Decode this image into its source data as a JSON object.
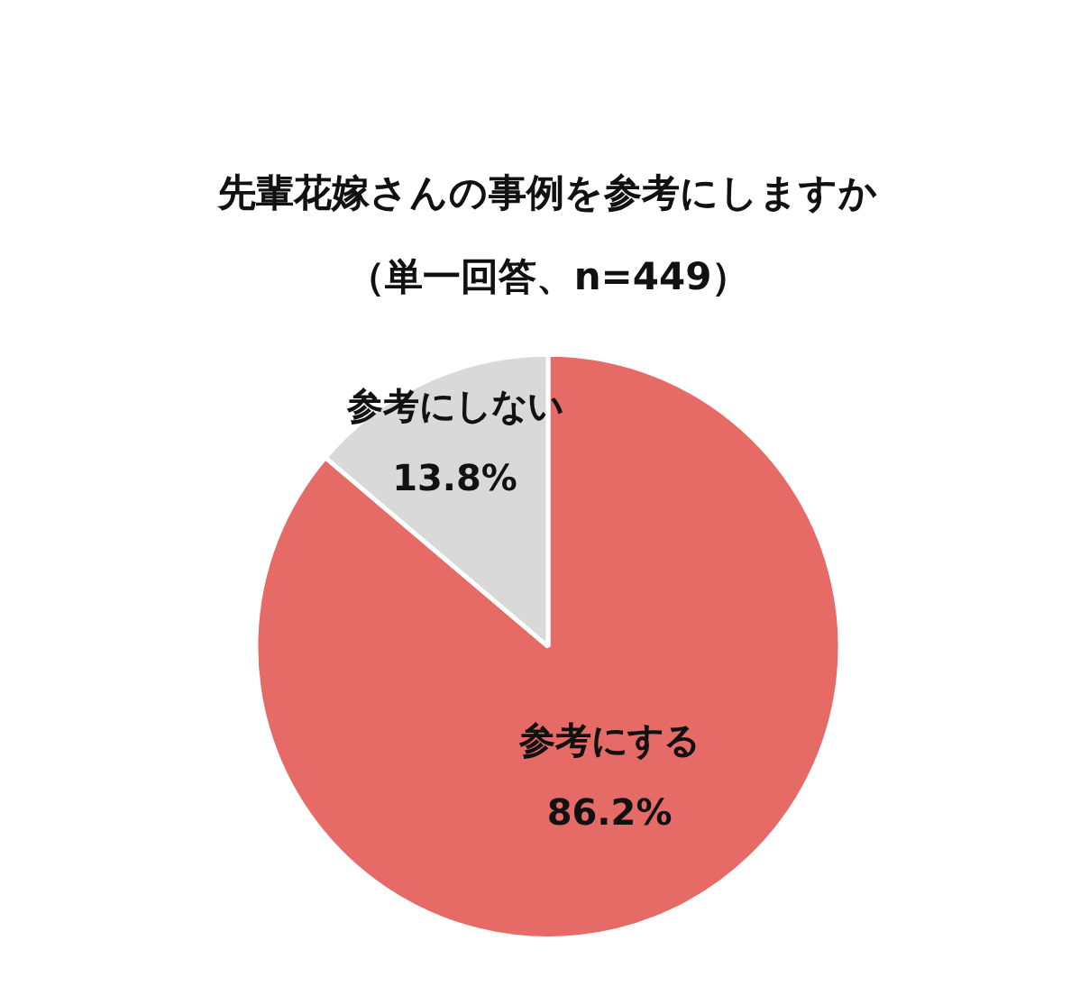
{
  "chart_data": {
    "type": "pie",
    "title": "先輩花嫁さんの事例を参考にしますか",
    "subtitle": "（単一回答、n=449）",
    "categories": [
      "参考にする",
      "参考にしない"
    ],
    "values": [
      86.2,
      13.8
    ],
    "colors": [
      "#e66a66",
      "#d9d9d9"
    ],
    "value_labels": [
      "86.2%",
      "13.8%"
    ],
    "legend": false
  }
}
